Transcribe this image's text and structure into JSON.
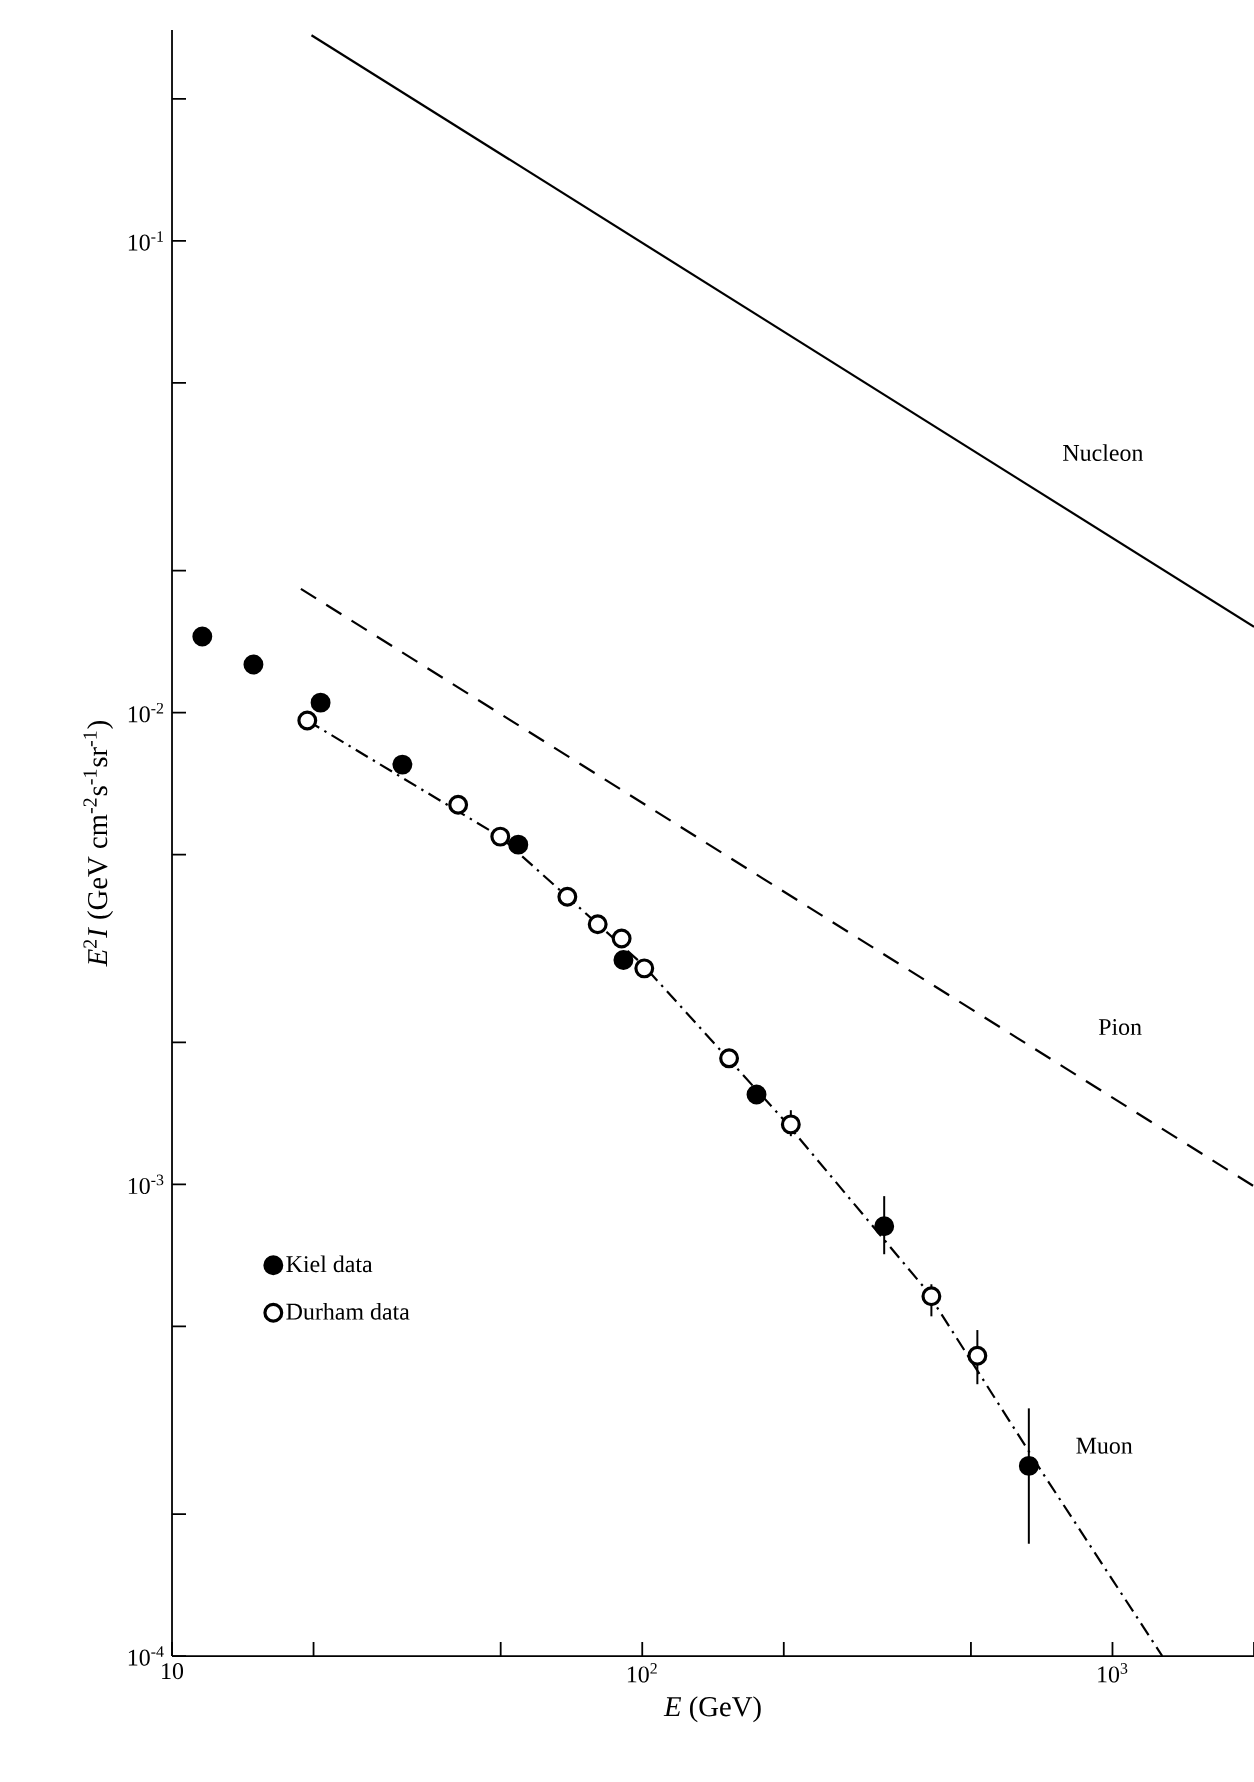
{
  "chart_data": {
    "type": "scatter",
    "xlabel": "*E* (GeV)",
    "ylabel": "*E*$^{2}$*I* (GeV cm$^{-2}$s$^{-1}$sr$^{-1}$)",
    "log": "xy",
    "xlim": [
      10,
      2000
    ],
    "ylim": [
      0.0001,
      0.28
    ],
    "xticks": [
      {
        "value": 10,
        "label": "10"
      },
      {
        "value": 20,
        "label": null
      },
      {
        "value": 50,
        "label": null
      },
      {
        "value": 100,
        "label": "10$^{2}$"
      },
      {
        "value": 200,
        "label": null
      },
      {
        "value": 500,
        "label": null
      },
      {
        "value": 1000,
        "label": "10$^{3}$"
      },
      {
        "value": 2000,
        "label": null
      }
    ],
    "yticks": [
      {
        "value": 0.0001,
        "label": "10$^{-4}$"
      },
      {
        "value": 0.0002,
        "label": null
      },
      {
        "value": 0.0005,
        "label": null
      },
      {
        "value": 0.001,
        "label": "10$^{-3}$"
      },
      {
        "value": 0.002,
        "label": null
      },
      {
        "value": 0.005,
        "label": null
      },
      {
        "value": 0.01,
        "label": "10$^{-2}$"
      },
      {
        "value": 0.02,
        "label": null
      },
      {
        "value": 0.05,
        "label": null
      },
      {
        "value": 0.1,
        "label": "10$^{-1}$"
      },
      {
        "value": 0.2,
        "label": null
      }
    ],
    "grid": false,
    "legend": "bottom left",
    "series": [
      {
        "name": "Nucleon",
        "type": "line",
        "line_style": "solid",
        "color": "#000000",
        "marker": "none",
        "x": [
          19.8,
          2000
        ],
        "values": [
          0.273,
          0.0152
        ]
      },
      {
        "name": "Pion",
        "type": "line",
        "line_style": "dashed",
        "color": "#000000",
        "marker": "none",
        "x": [
          18.8,
          2000
        ],
        "values": [
          0.0183,
          0.00099
        ]
      },
      {
        "name": "Muon",
        "type": "line",
        "line_style": "dashdot",
        "color": "#000000",
        "marker": "none",
        "x": [
          19.4,
          50,
          100,
          200,
          400,
          700,
          1276
        ],
        "values": [
          0.00962,
          0.00545,
          0.00293,
          0.00137,
          0.0006,
          0.00025,
          0.0001
        ]
      },
      {
        "name": "Kiel data",
        "marker": "circle",
        "color": "#000000",
        "x": [
          11.6,
          14.9,
          20.7,
          30.9,
          54.5,
          91.2,
          175,
          327,
          664
        ],
        "values": [
          0.0145,
          0.01265,
          0.0105,
          0.00776,
          0.00525,
          0.00299,
          0.00155,
          0.000815,
          0.000253
        ],
        "errors": [
          null,
          null,
          null,
          null,
          null,
          null,
          null,
          [
            0.000711,
            0.000944
          ],
          [
            0.000173,
            0.000335
          ]
        ]
      },
      {
        "name": "Durham data",
        "marker": "circle",
        "color": "#000000",
        "x": [
          19.4,
          40.6,
          49.9,
          69.3,
          80.4,
          90.4,
          101,
          153,
          207,
          412,
          516
        ],
        "values": [
          0.00962,
          0.00638,
          0.00546,
          0.00407,
          0.00356,
          0.00332,
          0.00287,
          0.00185,
          0.00134,
          0.000579,
          0.000433
        ],
        "errors": [
          null,
          null,
          null,
          null,
          null,
          null,
          null,
          null,
          [
            0.001265,
            0.001436
          ],
          [
            0.000525,
            0.000614
          ],
          [
            0.000377,
            0.000491
          ]
        ]
      }
    ]
  }
}
